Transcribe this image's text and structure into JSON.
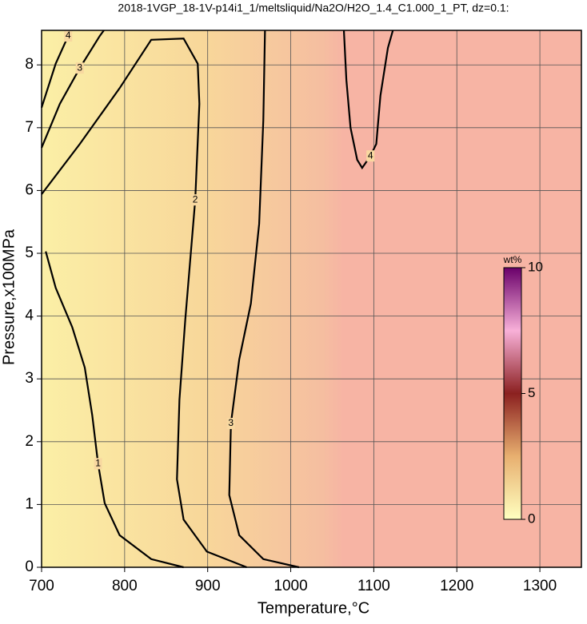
{
  "chart_data": {
    "type": "contour",
    "title": "2018-1VGP_18-1V-p14i1_1/meltsliquid/Na2O/H2O_1.4_C1.000_1_PT, dz=0.1:",
    "x_label": "Temperature,°C",
    "y_label": "Pressure,x100MPa",
    "xlim": [
      700,
      1350
    ],
    "ylim": [
      0,
      8.55
    ],
    "xticks": [
      700,
      800,
      900,
      1000,
      1100,
      1200,
      1300
    ],
    "yticks": [
      0,
      1,
      2,
      3,
      4,
      5,
      6,
      7,
      8
    ],
    "grid": true,
    "contours": [
      {
        "level": 1,
        "x": [
          705,
          717,
          737,
          752,
          761,
          768,
          776,
          794,
          832,
          871
        ],
        "y": [
          5.03,
          4.45,
          3.82,
          3.18,
          2.42,
          1.65,
          1.02,
          0.51,
          0.13,
          0
        ]
      },
      {
        "level": 2,
        "x": [
          700,
          746,
          794,
          832,
          871,
          888,
          890,
          885,
          873,
          866,
          863,
          871,
          899,
          947
        ],
        "y": [
          5.94,
          6.74,
          7.63,
          8.4,
          8.42,
          8.02,
          7.38,
          5.85,
          3.94,
          2.67,
          1.4,
          0.76,
          0.25,
          0
        ]
      },
      {
        "level": 3,
        "x": [
          969,
          967,
          962,
          952,
          938,
          928,
          926,
          938,
          967,
          1010
        ],
        "y": [
          8.55,
          7.12,
          5.47,
          4.2,
          3.31,
          2.29,
          1.15,
          0.51,
          0.13,
          0
        ]
      },
      {
        "level": 3,
        "x": [
          700,
          722,
          746,
          770,
          775
        ],
        "y": [
          6.68,
          7.38,
          7.95,
          8.46,
          8.55
        ]
      },
      {
        "level": 4,
        "x": [
          700,
          717,
          732,
          736
        ],
        "y": [
          7.32,
          8.02,
          8.46,
          8.55
        ]
      },
      {
        "level": 4,
        "x": [
          1064,
          1067,
          1072,
          1080,
          1086,
          1096,
          1103,
          1108,
          1117,
          1123
        ],
        "y": [
          8.55,
          7.76,
          7.0,
          6.49,
          6.36,
          6.55,
          6.74,
          7.51,
          8.27,
          8.55
        ]
      }
    ],
    "colorbar": {
      "label": "wt%",
      "lim": [
        0,
        10
      ],
      "ticks": [
        0,
        5,
        10
      ],
      "colormap": [
        "#ffffc0",
        "#e8b070",
        "#8b2020",
        "#f8b0d8",
        "#6a006a"
      ]
    }
  }
}
